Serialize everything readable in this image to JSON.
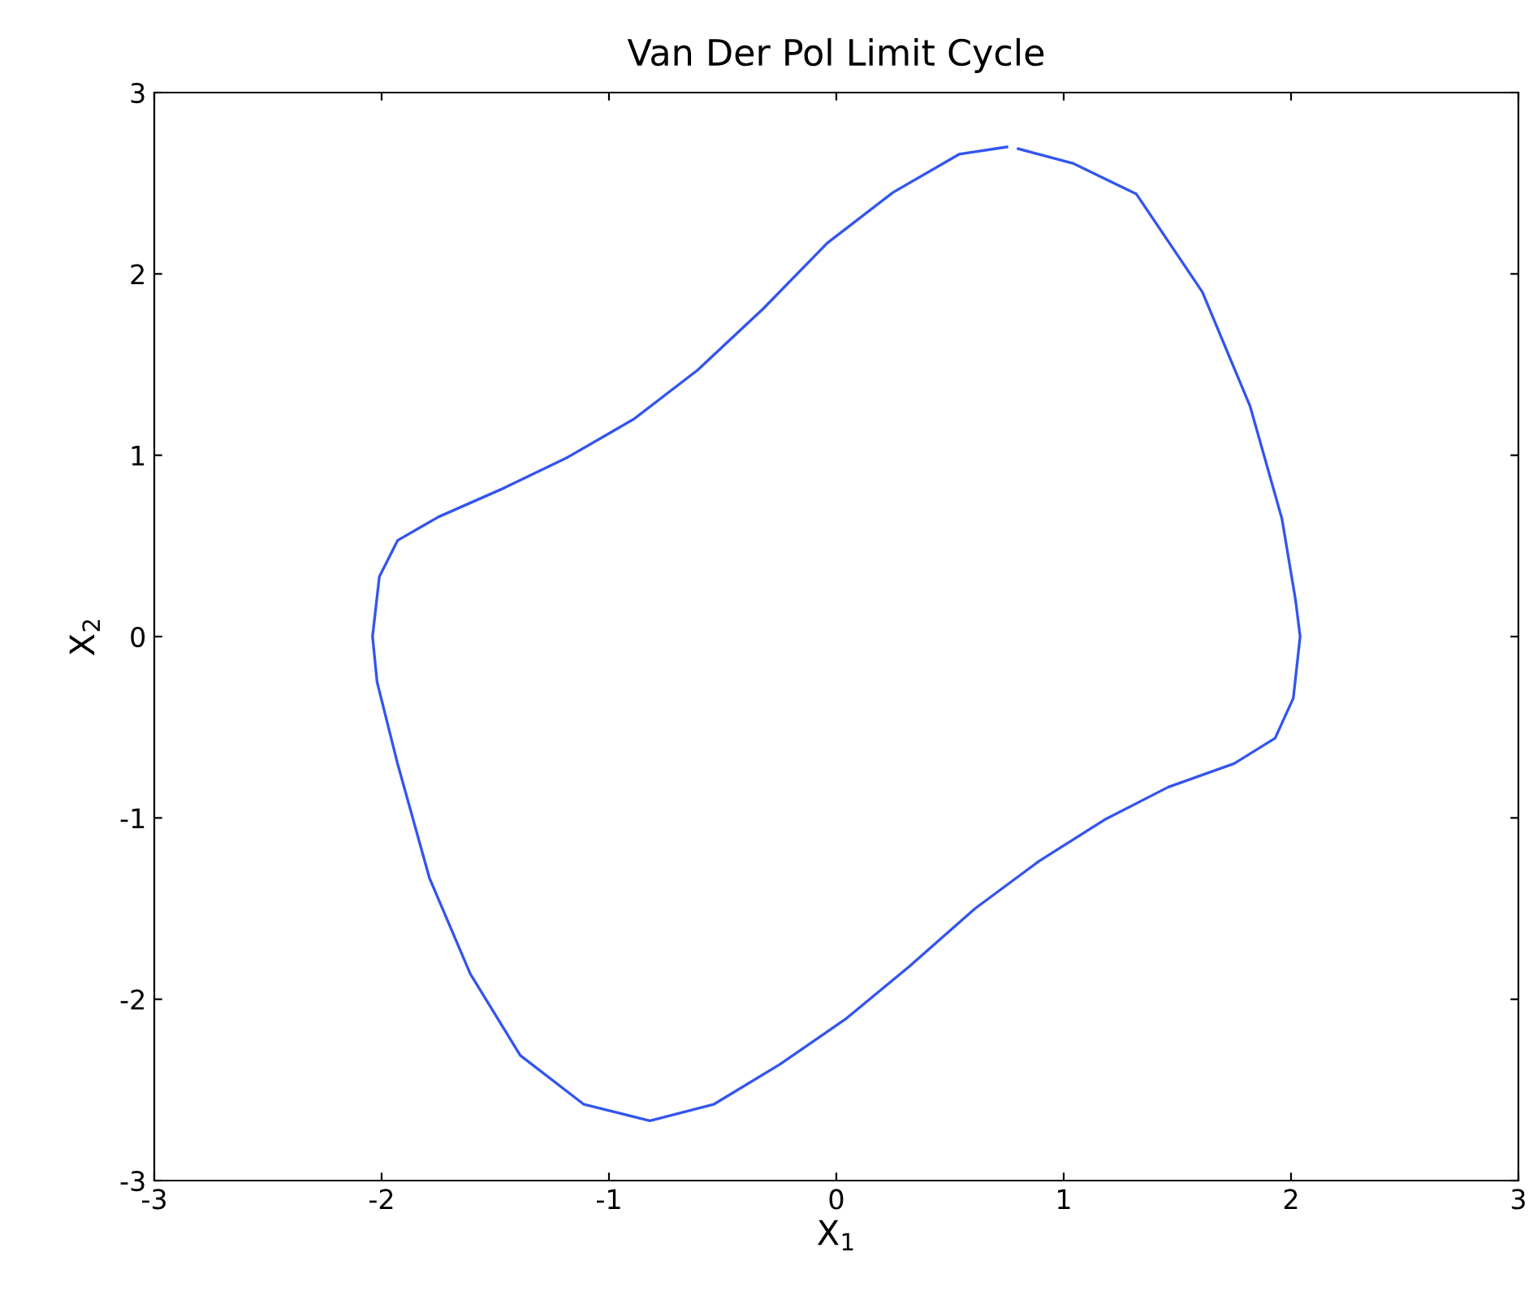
{
  "chart_data": {
    "type": "line",
    "title": "Van Der Pol Limit Cycle",
    "xlabel": "X$_{1}$",
    "ylabel": "X$_{2}$",
    "series": [
      {
        "color": "#3355ee",
        "x": [
          0.8,
          1.04,
          1.32,
          1.61,
          1.82,
          1.96,
          2.02,
          2.04,
          2.01,
          1.93,
          1.75,
          1.46,
          1.18,
          0.89,
          0.61,
          0.32,
          0.04,
          -0.25,
          -0.54,
          -0.82,
          -1.11,
          -1.39,
          -1.61,
          -1.79,
          -1.93,
          -2.02,
          -2.04,
          -2.01,
          -1.93,
          -1.75,
          -1.46,
          -1.18,
          -0.89,
          -0.61,
          -0.32,
          -0.04,
          0.25,
          0.54,
          0.75
        ],
        "values": [
          2.69,
          2.61,
          2.44,
          1.9,
          1.27,
          0.65,
          0.2,
          0.0,
          -0.34,
          -0.56,
          -0.7,
          -0.83,
          -1.01,
          -1.24,
          -1.5,
          -1.82,
          -2.11,
          -2.36,
          -2.58,
          -2.67,
          -2.58,
          -2.31,
          -1.86,
          -1.33,
          -0.7,
          -0.25,
          0.0,
          0.33,
          0.53,
          0.66,
          0.82,
          0.99,
          1.2,
          1.47,
          1.81,
          2.17,
          2.45,
          2.66,
          2.7
        ]
      }
    ],
    "xlim": [
      -3,
      3
    ],
    "ylim": [
      -3,
      3
    ],
    "xticks": [
      -3,
      -2,
      -1,
      0,
      1,
      2,
      3
    ],
    "yticks": [
      -3,
      -2,
      -1,
      0,
      1,
      2,
      3
    ],
    "grid": false
  }
}
